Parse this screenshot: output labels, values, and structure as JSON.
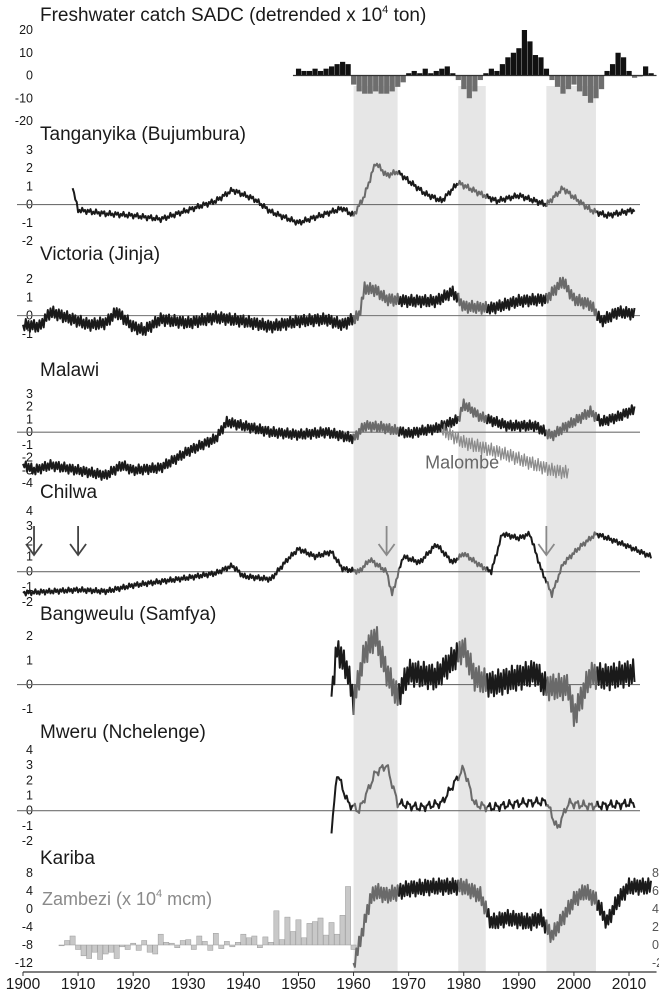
{
  "chart_data": [
    {
      "panel": "sadc",
      "type": "bar",
      "title": "Freshwater catch SADC (detrended x 10",
      "title_sup": "4",
      "title_end": " ton)",
      "yticks": [
        "20",
        "10",
        "0",
        "-10",
        "-20"
      ],
      "ylim": [
        -20,
        20
      ],
      "x": [
        1950,
        1951,
        1952,
        1953,
        1954,
        1955,
        1956,
        1957,
        1958,
        1959,
        1960,
        1961,
        1962,
        1963,
        1964,
        1965,
        1966,
        1967,
        1968,
        1969,
        1970,
        1971,
        1972,
        1973,
        1974,
        1975,
        1976,
        1977,
        1978,
        1979,
        1980,
        1981,
        1982,
        1983,
        1984,
        1985,
        1986,
        1987,
        1988,
        1989,
        1990,
        1991,
        1992,
        1993,
        1994,
        1995,
        1996,
        1997,
        1998,
        1999,
        2000,
        2001,
        2002,
        2003,
        2004,
        2005,
        2006,
        2007,
        2008,
        2009,
        2010,
        2011,
        2012,
        2013,
        2014
      ],
      "values": [
        3,
        2,
        2,
        3,
        2,
        3,
        4,
        5,
        6,
        5,
        -4,
        -7,
        -8,
        -8,
        -7,
        -8,
        -8,
        -7,
        -5,
        -3,
        1,
        2,
        1,
        3,
        1,
        2,
        3,
        4,
        1,
        -2,
        -6,
        -10,
        -7,
        -2,
        1,
        3,
        2,
        5,
        8,
        10,
        12,
        20,
        15,
        9,
        8,
        3,
        -2,
        -5,
        -8,
        -6,
        -4,
        -7,
        -9,
        -12,
        -10,
        -6,
        2,
        5,
        10,
        8,
        2,
        -1,
        0,
        4,
        1
      ]
    },
    {
      "panel": "tanganyika",
      "type": "line",
      "title": "Tanganyika (Bujumbura)",
      "yticks": [
        "3",
        "2",
        "1",
        "0",
        "-1",
        "-2"
      ],
      "ylim": [
        -2,
        3
      ],
      "x_range": [
        1909,
        2011
      ],
      "anchors": [
        [
          1909,
          0.9
        ],
        [
          1910,
          -0.3
        ],
        [
          1915,
          -0.5
        ],
        [
          1920,
          -0.6
        ],
        [
          1925,
          -0.8
        ],
        [
          1930,
          -0.3
        ],
        [
          1935,
          0.2
        ],
        [
          1938,
          0.8
        ],
        [
          1942,
          0.3
        ],
        [
          1945,
          -0.4
        ],
        [
          1950,
          -1.0
        ],
        [
          1955,
          -0.5
        ],
        [
          1958,
          -0.2
        ],
        [
          1960,
          -0.6
        ],
        [
          1962,
          0.5
        ],
        [
          1964,
          2.3
        ],
        [
          1966,
          1.6
        ],
        [
          1968,
          1.8
        ],
        [
          1970,
          1.3
        ],
        [
          1973,
          0.6
        ],
        [
          1976,
          0.2
        ],
        [
          1979,
          1.2
        ],
        [
          1983,
          0.6
        ],
        [
          1986,
          0.2
        ],
        [
          1990,
          0.5
        ],
        [
          1995,
          0.0
        ],
        [
          1998,
          0.9
        ],
        [
          2000,
          0.4
        ],
        [
          2003,
          -0.3
        ],
        [
          2006,
          -0.6
        ],
        [
          2011,
          -0.3
        ]
      ],
      "amplitude": 0.3
    },
    {
      "panel": "victoria",
      "type": "line",
      "title": "Victoria (Jinja)",
      "yticks": [
        "2",
        "1",
        "0",
        "-1"
      ],
      "ylim": [
        -1.5,
        2.5
      ],
      "x_range": [
        1900,
        2011
      ],
      "anchors": [
        [
          1900,
          -0.5
        ],
        [
          1903,
          -0.6
        ],
        [
          1905,
          0.2
        ],
        [
          1908,
          -0.1
        ],
        [
          1912,
          -0.5
        ],
        [
          1915,
          -0.4
        ],
        [
          1917,
          0.2
        ],
        [
          1920,
          -0.6
        ],
        [
          1922,
          -0.8
        ],
        [
          1925,
          -0.2
        ],
        [
          1930,
          -0.4
        ],
        [
          1935,
          -0.1
        ],
        [
          1940,
          -0.3
        ],
        [
          1945,
          -0.6
        ],
        [
          1950,
          -0.3
        ],
        [
          1955,
          -0.2
        ],
        [
          1958,
          -0.5
        ],
        [
          1961,
          0.0
        ],
        [
          1962,
          1.5
        ],
        [
          1964,
          1.4
        ],
        [
          1966,
          0.9
        ],
        [
          1970,
          0.8
        ],
        [
          1975,
          0.8
        ],
        [
          1978,
          1.3
        ],
        [
          1980,
          0.5
        ],
        [
          1985,
          0.4
        ],
        [
          1990,
          0.8
        ],
        [
          1995,
          0.9
        ],
        [
          1998,
          1.9
        ],
        [
          2000,
          0.9
        ],
        [
          2003,
          0.6
        ],
        [
          2005,
          -0.3
        ],
        [
          2008,
          0.2
        ],
        [
          2011,
          0.1
        ]
      ],
      "amplitude": 0.32
    },
    {
      "panel": "malawi",
      "type": "line",
      "title": "Malawi",
      "yticks": [
        "3",
        "2",
        "1",
        "0",
        "-1",
        "-2",
        "-3",
        "-4"
      ],
      "ylim": [
        -4,
        3
      ],
      "x_range": [
        1900,
        2011
      ],
      "anchors": [
        [
          1900,
          -2.5
        ],
        [
          1902,
          -3.0
        ],
        [
          1905,
          -2.6
        ],
        [
          1910,
          -3.0
        ],
        [
          1915,
          -3.4
        ],
        [
          1918,
          -2.6
        ],
        [
          1920,
          -3.0
        ],
        [
          1925,
          -2.8
        ],
        [
          1930,
          -1.5
        ],
        [
          1935,
          -0.5
        ],
        [
          1937,
          0.8
        ],
        [
          1940,
          0.5
        ],
        [
          1945,
          0.0
        ],
        [
          1950,
          -0.2
        ],
        [
          1955,
          0.0
        ],
        [
          1960,
          -0.5
        ],
        [
          1962,
          0.5
        ],
        [
          1965,
          0.4
        ],
        [
          1970,
          -0.1
        ],
        [
          1975,
          0.3
        ],
        [
          1979,
          1.0
        ],
        [
          1980,
          2.2
        ],
        [
          1983,
          1.2
        ],
        [
          1988,
          0.5
        ],
        [
          1993,
          0.5
        ],
        [
          1996,
          -0.3
        ],
        [
          1998,
          0.3
        ],
        [
          2003,
          1.6
        ],
        [
          2005,
          0.8
        ],
        [
          2008,
          1.2
        ],
        [
          2011,
          1.8
        ]
      ],
      "amplitude": 0.42,
      "inset": {
        "label": "Malombe",
        "x_range": [
          1976,
          1999
        ],
        "anchors": [
          [
            1976,
            0.2
          ],
          [
            1980,
            -0.8
          ],
          [
            1984,
            -1.3
          ],
          [
            1988,
            -1.8
          ],
          [
            1992,
            -2.4
          ],
          [
            1996,
            -3.0
          ],
          [
            1999,
            -3.2
          ]
        ]
      }
    },
    {
      "panel": "chilwa",
      "type": "line",
      "title": "Chilwa",
      "yticks": [
        "4",
        "3",
        "2",
        "1",
        "0",
        "-1",
        "-2"
      ],
      "ylim": [
        -2,
        4
      ],
      "x_range": [
        1900,
        2014
      ],
      "anchors": [
        [
          1900,
          -1.4
        ],
        [
          1910,
          -1.2
        ],
        [
          1915,
          -1.3
        ],
        [
          1920,
          -0.9
        ],
        [
          1930,
          -0.4
        ],
        [
          1935,
          -0.1
        ],
        [
          1938,
          0.4
        ],
        [
          1940,
          -0.3
        ],
        [
          1945,
          -0.5
        ],
        [
          1948,
          0.8
        ],
        [
          1950,
          1.5
        ],
        [
          1953,
          1.0
        ],
        [
          1956,
          1.3
        ],
        [
          1958,
          0.2
        ],
        [
          1961,
          0.0
        ],
        [
          1963,
          0.8
        ],
        [
          1966,
          0.0
        ],
        [
          1967,
          -1.5
        ],
        [
          1969,
          1.0
        ],
        [
          1972,
          0.6
        ],
        [
          1975,
          1.8
        ],
        [
          1978,
          0.6
        ],
        [
          1980,
          1.2
        ],
        [
          1983,
          0.4
        ],
        [
          1985,
          0.0
        ],
        [
          1987,
          2.5
        ],
        [
          1990,
          2.2
        ],
        [
          1992,
          2.5
        ],
        [
          1994,
          0.2
        ],
        [
          1996,
          -1.5
        ],
        [
          1998,
          0.5
        ],
        [
          2001,
          1.6
        ],
        [
          2004,
          2.5
        ],
        [
          2009,
          1.8
        ],
        [
          2014,
          1.0
        ]
      ],
      "amplitude": 0.28,
      "arrows_years": [
        1902,
        1910,
        1966,
        1995
      ]
    },
    {
      "panel": "bangweulu",
      "type": "line",
      "title": "Bangweulu (Samfya)",
      "yticks": [
        "2",
        "1",
        "0",
        "-1"
      ],
      "ylim": [
        -1.5,
        2
      ],
      "x_range": [
        1956,
        2011
      ],
      "anchors": [
        [
          1956,
          -0.5
        ],
        [
          1957,
          1.5
        ],
        [
          1959,
          0.5
        ],
        [
          1960,
          -0.7
        ],
        [
          1962,
          1.3
        ],
        [
          1964,
          2.0
        ],
        [
          1966,
          0.5
        ],
        [
          1968,
          -0.5
        ],
        [
          1970,
          0.5
        ],
        [
          1975,
          0.3
        ],
        [
          1980,
          1.5
        ],
        [
          1982,
          0.3
        ],
        [
          1985,
          0.0
        ],
        [
          1990,
          0.3
        ],
        [
          1993,
          0.5
        ],
        [
          1995,
          -0.1
        ],
        [
          1999,
          -0.1
        ],
        [
          2000,
          -1.3
        ],
        [
          2003,
          0.4
        ],
        [
          2006,
          0.3
        ],
        [
          2011,
          0.5
        ]
      ],
      "amplitude": 0.45
    },
    {
      "panel": "mweru",
      "type": "line",
      "title": "Mweru (Nchelenge)",
      "yticks": [
        "4",
        "3",
        "2",
        "1",
        "0",
        "-1",
        "-2"
      ],
      "ylim": [
        -2,
        4
      ],
      "x_range": [
        1956,
        2011
      ],
      "anchors": [
        [
          1956,
          -1.5
        ],
        [
          1957,
          2.5
        ],
        [
          1959,
          0.5
        ],
        [
          1961,
          0.0
        ],
        [
          1964,
          2.5
        ],
        [
          1966,
          3.0
        ],
        [
          1968,
          0.5
        ],
        [
          1972,
          0.2
        ],
        [
          1976,
          0.5
        ],
        [
          1980,
          2.8
        ],
        [
          1982,
          0.4
        ],
        [
          1985,
          0.2
        ],
        [
          1990,
          0.5
        ],
        [
          1995,
          0.6
        ],
        [
          1997,
          -1.2
        ],
        [
          1999,
          0.5
        ],
        [
          2003,
          0.3
        ],
        [
          2008,
          0.4
        ],
        [
          2011,
          0.5
        ]
      ],
      "amplitude": 0.85
    },
    {
      "panel": "kariba",
      "type": "line",
      "title": "Kariba",
      "yticks": [
        "8",
        "4",
        "0",
        "-4",
        "-8",
        "-12"
      ],
      "ylim": [
        -12,
        8
      ],
      "x_range": [
        1960,
        2014
      ],
      "anchors": [
        [
          1960,
          -12
        ],
        [
          1961,
          -8
        ],
        [
          1963,
          2
        ],
        [
          1964,
          4
        ],
        [
          1966,
          3
        ],
        [
          1970,
          4.5
        ],
        [
          1975,
          5
        ],
        [
          1980,
          5
        ],
        [
          1983,
          3
        ],
        [
          1985,
          -3
        ],
        [
          1988,
          -2
        ],
        [
          1992,
          -3
        ],
        [
          1994,
          -2
        ],
        [
          1996,
          -6
        ],
        [
          1998,
          -2
        ],
        [
          2000,
          2
        ],
        [
          2002,
          4
        ],
        [
          2004,
          2
        ],
        [
          2006,
          -3
        ],
        [
          2008,
          2
        ],
        [
          2010,
          5
        ],
        [
          2014,
          5
        ]
      ],
      "amplitude": 1.6,
      "zambezi": {
        "title": "Zambezi (x 10",
        "title_sup": "4",
        "title_end": " mcm)",
        "type": "bar",
        "right_yticks": [
          "8",
          "6",
          "4",
          "2",
          "0",
          "-2"
        ],
        "right_ylim": [
          -2,
          8
        ],
        "x": [
          1907,
          1908,
          1909,
          1910,
          1911,
          1912,
          1913,
          1914,
          1915,
          1916,
          1917,
          1918,
          1919,
          1920,
          1921,
          1922,
          1923,
          1924,
          1925,
          1926,
          1927,
          1928,
          1929,
          1930,
          1931,
          1932,
          1933,
          1934,
          1935,
          1936,
          1937,
          1938,
          1939,
          1940,
          1941,
          1942,
          1943,
          1944,
          1945,
          1946,
          1947,
          1948,
          1949,
          1950,
          1951,
          1952,
          1953,
          1954,
          1955,
          1956,
          1957,
          1958,
          1959,
          1960
        ],
        "values": [
          0.0,
          0.5,
          1.0,
          -0.5,
          -1.2,
          -1.5,
          -0.8,
          -1.6,
          -1.0,
          -0.8,
          -1.5,
          -0.2,
          -0.5,
          0.2,
          -0.6,
          0.5,
          -0.8,
          -1.0,
          1.2,
          0.3,
          0.2,
          -0.3,
          0.5,
          0.6,
          -0.5,
          1.0,
          0.4,
          -0.6,
          1.3,
          -0.4,
          0.4,
          -0.2,
          0.3,
          1.2,
          0.8,
          1.0,
          -0.3,
          0.9,
          0.3,
          3.8,
          0.6,
          3.1,
          1.5,
          2.8,
          0.8,
          2.4,
          2.6,
          3.0,
          1.1,
          2.5,
          1.2,
          3.3,
          6.5,
          -0.5
        ]
      }
    }
  ],
  "x_axis": {
    "ticks": [
      "1900",
      "1910",
      "1920",
      "1930",
      "1940",
      "1950",
      "1960",
      "1970",
      "1980",
      "1990",
      "2000",
      "2010"
    ],
    "range": [
      1900,
      2015
    ]
  },
  "shaded_periods": [
    [
      1960,
      1968
    ],
    [
      1979,
      1984
    ],
    [
      1995,
      2004
    ]
  ],
  "colors": {
    "line_default": "#1a1a1a",
    "line_shaded": "#6a6a6a",
    "malombe": "#8c8c8c",
    "shade": "#e6e6e6",
    "sadc_neg": "#6e6e6e",
    "zambezi_bar": "#c8c8c8",
    "zero_line": "#707070"
  }
}
